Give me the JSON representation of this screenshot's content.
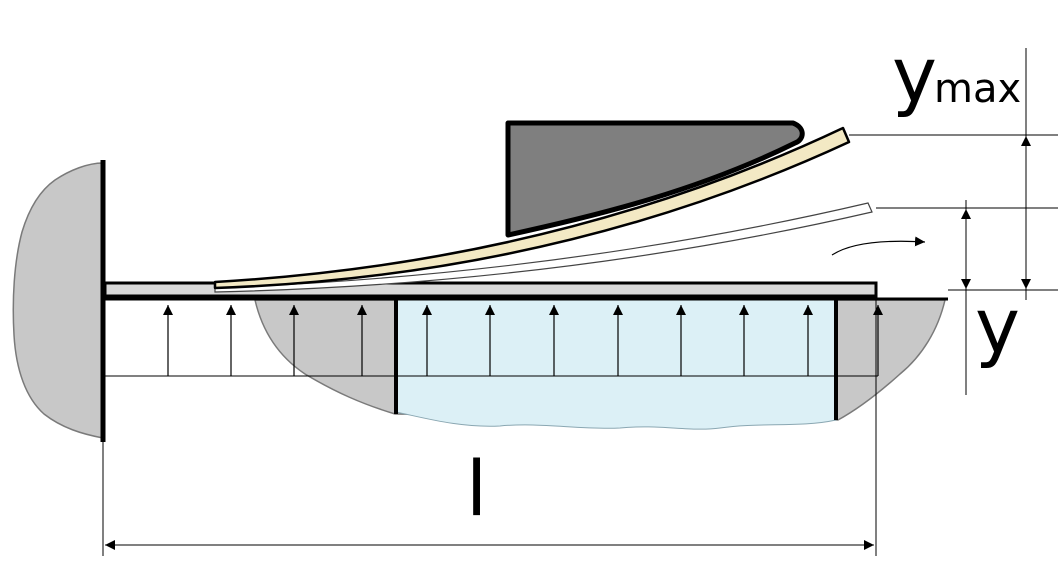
{
  "labels": {
    "ymax_main": "y",
    "ymax_sub": "max",
    "y": "y",
    "l": "l"
  },
  "colors": {
    "support_fill": "#c8c8c8",
    "soil_fill": "#c8c8c8",
    "water_fill": "#dcf0f6",
    "die_fill": "#7f7f7f",
    "strip_fill": "#f3e9c4",
    "plate_fill": "#d9d9d9",
    "outline": "#000000"
  }
}
